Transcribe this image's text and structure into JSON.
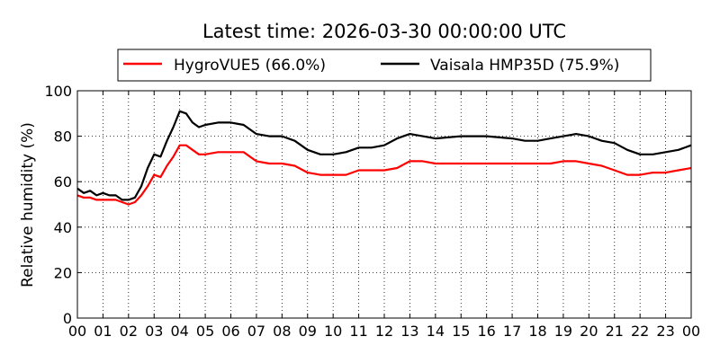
{
  "chart_data": {
    "type": "line",
    "title": "Latest time: 2026-03-30 00:00:00 UTC",
    "xlabel": "",
    "ylabel": "Relative humidity (%)",
    "xlim": [
      0,
      24
    ],
    "ylim": [
      0,
      100
    ],
    "grid": true,
    "legend_position": "top-center",
    "x_tick_labels": [
      "00",
      "01",
      "02",
      "03",
      "04",
      "05",
      "06",
      "07",
      "08",
      "09",
      "10",
      "11",
      "12",
      "13",
      "14",
      "15",
      "16",
      "17",
      "18",
      "19",
      "20",
      "21",
      "22",
      "23",
      "00"
    ],
    "y_tick_labels": [
      "0",
      "20",
      "40",
      "60",
      "80",
      "100"
    ],
    "x": [
      0,
      0.25,
      0.5,
      0.75,
      1,
      1.25,
      1.5,
      1.75,
      2,
      2.25,
      2.5,
      2.75,
      3,
      3.25,
      3.5,
      3.75,
      4,
      4.25,
      4.5,
      4.75,
      5,
      5.5,
      6,
      6.5,
      7,
      7.5,
      8,
      8.5,
      9,
      9.5,
      10,
      10.5,
      11,
      11.5,
      12,
      12.5,
      13,
      13.5,
      14,
      15,
      16,
      17,
      17.5,
      18,
      18.5,
      19,
      19.5,
      20,
      20.5,
      21,
      21.5,
      22,
      22.5,
      23,
      23.5,
      24
    ],
    "series": [
      {
        "name": "HygroVUE5 (66.0%)",
        "color": "#ff0000",
        "values": [
          54,
          53,
          53,
          52,
          52,
          52,
          52,
          51,
          50,
          51,
          54,
          58,
          63,
          62,
          67,
          71,
          76,
          76,
          74,
          72,
          72,
          73,
          73,
          73,
          69,
          68,
          68,
          67,
          64,
          63,
          63,
          63,
          65,
          65,
          65,
          66,
          69,
          69,
          68,
          68,
          68,
          68,
          68,
          68,
          68,
          69,
          69,
          68,
          67,
          65,
          63,
          63,
          64,
          64,
          65,
          66
        ]
      },
      {
        "name": "Vaisala HMP35D (75.9%)",
        "color": "#000000",
        "values": [
          57,
          55,
          56,
          54,
          55,
          54,
          54,
          52,
          52,
          53,
          58,
          66,
          72,
          71,
          78,
          84,
          91,
          90,
          86,
          84,
          85,
          86,
          86,
          85,
          81,
          80,
          80,
          78,
          74,
          72,
          72,
          73,
          75,
          75,
          76,
          79,
          81,
          80,
          79,
          80,
          80,
          79,
          78,
          78,
          79,
          80,
          81,
          80,
          78,
          77,
          74,
          72,
          72,
          73,
          74,
          76
        ]
      }
    ]
  }
}
